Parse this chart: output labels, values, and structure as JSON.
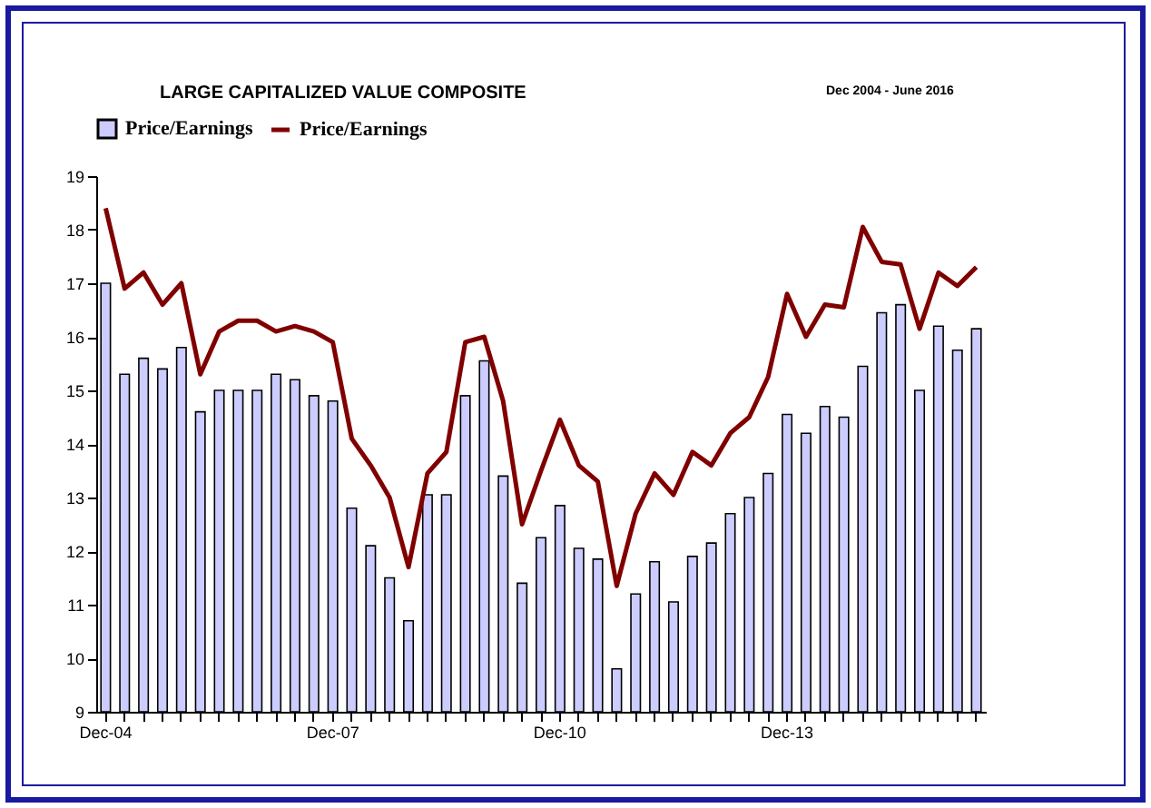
{
  "chart_data": {
    "type": "bar",
    "title": "LARGE CAPITALIZED VALUE COMPOSITE",
    "subtitle": "Dec 2004 - June 2016",
    "categories": [
      "Dec-04",
      null,
      null,
      null,
      null,
      null,
      null,
      null,
      null,
      null,
      null,
      null,
      "Dec-07",
      null,
      null,
      null,
      null,
      null,
      null,
      null,
      null,
      null,
      null,
      null,
      "Dec-10",
      null,
      null,
      null,
      null,
      null,
      null,
      null,
      null,
      null,
      null,
      null,
      "Dec-13",
      null,
      null,
      null,
      null,
      null,
      null,
      null,
      null,
      null,
      null
    ],
    "series": [
      {
        "name": "Price/Earnings",
        "color": "#ccccff",
        "values": [
          17.0,
          15.3,
          15.6,
          15.4,
          15.8,
          14.6,
          15.0,
          15.0,
          15.0,
          15.3,
          15.2,
          14.9,
          14.8,
          12.8,
          12.1,
          11.5,
          10.7,
          13.05,
          13.05,
          14.9,
          15.55,
          13.4,
          11.4,
          12.25,
          12.85,
          12.05,
          11.85,
          9.8,
          11.2,
          11.8,
          11.05,
          11.9,
          12.15,
          12.7,
          13.0,
          13.45,
          14.55,
          14.2,
          14.7,
          14.5,
          15.45,
          16.45,
          16.6,
          15.0,
          16.2,
          15.75,
          16.15
        ]
      },
      {
        "name": "Price/Earnings",
        "type": "line",
        "color": "#800000",
        "values": [
          18.4,
          16.9,
          17.2,
          16.6,
          17.0,
          15.3,
          16.1,
          16.3,
          16.3,
          16.1,
          16.2,
          16.1,
          15.9,
          14.1,
          13.6,
          13.0,
          11.7,
          13.45,
          13.85,
          15.9,
          16.0,
          14.8,
          12.5,
          13.5,
          14.45,
          13.6,
          13.3,
          11.35,
          12.7,
          13.45,
          13.05,
          13.85,
          13.6,
          14.2,
          14.5,
          15.25,
          16.8,
          16.0,
          16.6,
          16.55,
          18.05,
          17.4,
          17.35,
          16.15,
          17.2,
          16.95,
          17.3
        ]
      }
    ],
    "ylim": [
      9,
      19
    ],
    "yticks": [
      9,
      10,
      11,
      12,
      13,
      14,
      15,
      16,
      17,
      18,
      19
    ],
    "grid": false,
    "legend": "top"
  }
}
